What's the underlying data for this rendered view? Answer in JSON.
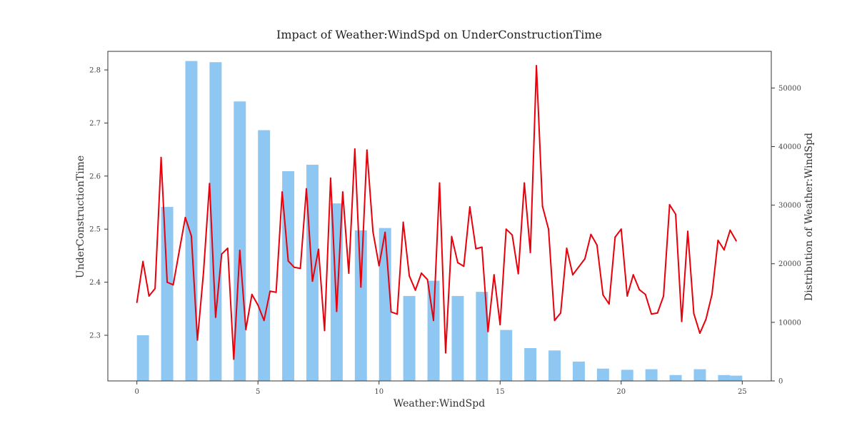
{
  "chart_data": {
    "type": "bar+line",
    "title": "Impact of Weather:WindSpd on UnderConstructionTime",
    "xlabel": "Weather:WindSpd",
    "ylabel_left": "UnderConstructionTime",
    "ylabel_right": "Distribution of Weather:WindSpd",
    "xlim": [
      -1.2,
      26.2
    ],
    "ylim_left": [
      2.214,
      2.835
    ],
    "ylim_right": [
      0,
      56250
    ],
    "x_ticks": [
      0,
      5,
      10,
      15,
      20,
      25
    ],
    "y_left_ticks": [
      2.3,
      2.4,
      2.5,
      2.6,
      2.7,
      2.8
    ],
    "y_right_ticks": [
      0,
      10000,
      20000,
      30000,
      40000,
      50000
    ],
    "colors": {
      "bars": "#8ec8f2",
      "line": "#e8000b",
      "frame": "#333333"
    },
    "bar_width": 0.5,
    "bars": {
      "x": [
        0.25,
        1.25,
        2.25,
        3.25,
        4.25,
        5.25,
        6.25,
        7.25,
        8.25,
        9.25,
        10.25,
        11.25,
        12.25,
        13.25,
        14.25,
        15.25,
        16.25,
        17.25,
        18.25,
        19.25,
        20.25,
        21.25,
        22.25,
        23.25,
        24.25,
        24.75
      ],
      "values": [
        7800,
        29700,
        54600,
        54400,
        47700,
        42800,
        35800,
        36900,
        30300,
        25700,
        26100,
        14500,
        17100,
        14500,
        15200,
        8700,
        5600,
        5200,
        3300,
        2100,
        1900,
        2000,
        1000,
        2000,
        1000,
        900
      ]
    },
    "line": {
      "x": [
        0.0,
        0.25,
        0.5,
        0.75,
        1.0,
        1.25,
        1.5,
        1.75,
        2.0,
        2.25,
        2.5,
        2.75,
        3.0,
        3.25,
        3.5,
        3.75,
        4.0,
        4.25,
        4.5,
        4.75,
        5.0,
        5.25,
        5.5,
        5.75,
        6.0,
        6.25,
        6.5,
        6.75,
        7.0,
        7.25,
        7.5,
        7.75,
        8.0,
        8.25,
        8.5,
        8.75,
        9.0,
        9.25,
        9.5,
        9.75,
        10.0,
        10.25,
        10.5,
        10.75,
        11.0,
        11.25,
        11.5,
        11.75,
        12.0,
        12.25,
        12.5,
        12.75,
        13.0,
        13.25,
        13.5,
        13.75,
        14.0,
        14.25,
        14.5,
        14.75,
        15.0,
        15.25,
        15.5,
        15.75,
        16.0,
        16.25,
        16.5,
        16.75,
        17.0,
        17.25,
        17.5,
        17.75,
        18.0,
        18.25,
        18.5,
        18.75,
        19.0,
        19.25,
        19.5,
        19.75,
        20.0,
        20.25,
        20.5,
        20.75,
        21.0,
        21.25,
        21.5,
        21.75,
        22.0,
        22.25,
        22.5,
        22.75,
        23.0,
        23.25,
        23.5,
        23.75,
        24.0,
        24.25,
        24.5,
        24.75
      ],
      "values": [
        2.362,
        2.439,
        2.374,
        2.388,
        2.635,
        2.4,
        2.395,
        2.459,
        2.522,
        2.487,
        2.291,
        2.418,
        2.586,
        2.334,
        2.453,
        2.464,
        2.255,
        2.46,
        2.311,
        2.377,
        2.357,
        2.328,
        2.383,
        2.381,
        2.57,
        2.44,
        2.428,
        2.426,
        2.576,
        2.402,
        2.462,
        2.309,
        2.596,
        2.345,
        2.57,
        2.417,
        2.651,
        2.391,
        2.649,
        2.495,
        2.431,
        2.494,
        2.344,
        2.34,
        2.513,
        2.412,
        2.385,
        2.417,
        2.405,
        2.328,
        2.587,
        2.267,
        2.486,
        2.437,
        2.43,
        2.542,
        2.463,
        2.466,
        2.307,
        2.414,
        2.32,
        2.5,
        2.489,
        2.416,
        2.587,
        2.456,
        2.808,
        2.543,
        2.5,
        2.328,
        2.342,
        2.464,
        2.414,
        2.429,
        2.444,
        2.49,
        2.47,
        2.376,
        2.359,
        2.485,
        2.5,
        2.374,
        2.414,
        2.386,
        2.377,
        2.34,
        2.342,
        2.374,
        2.546,
        2.528,
        2.326,
        2.496,
        2.341,
        2.304,
        2.33,
        2.377,
        2.479,
        2.461,
        2.498,
        2.478
      ]
    }
  }
}
